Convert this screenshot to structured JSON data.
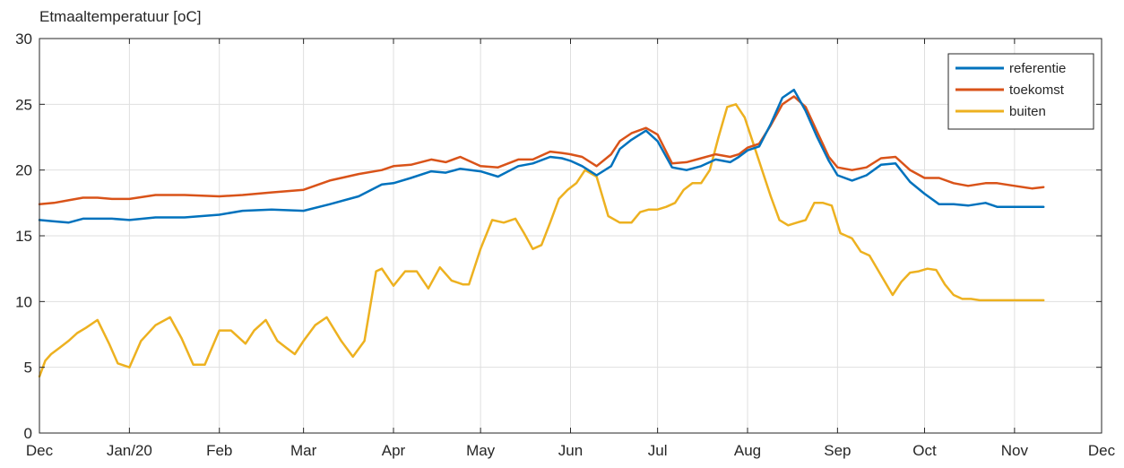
{
  "chart_data": {
    "type": "line",
    "title": "Etmaaltemperatuur [oC]",
    "xlabel": "",
    "ylabel": "",
    "ylim": [
      0,
      30
    ],
    "yticks": [
      0,
      5,
      10,
      15,
      20,
      25,
      30
    ],
    "ytick_labels": [
      "0",
      "5",
      "10",
      "15",
      "20",
      "25",
      "30"
    ],
    "xlim": [
      0,
      366
    ],
    "xticks": [
      0,
      31,
      62,
      91,
      122,
      152,
      183,
      213,
      244,
      275,
      305,
      336,
      366
    ],
    "xtick_labels": [
      "Dec",
      "Jan/20",
      "Feb",
      "Mar",
      "Apr",
      "May",
      "Jun",
      "Jul",
      "Aug",
      "Sep",
      "Oct",
      "Nov",
      "Dec"
    ],
    "grid": true,
    "legend_position": "top-right",
    "colors": {
      "referentie": "#0072bd",
      "toekomst": "#d95319",
      "buiten": "#edb120",
      "grid": "#dfdfdf",
      "axis": "#262626"
    },
    "series": [
      {
        "name": "referentie",
        "x": [
          0,
          5,
          10,
          15,
          20,
          25,
          31,
          40,
          50,
          62,
          70,
          80,
          91,
          100,
          110,
          118,
          122,
          128,
          135,
          140,
          145,
          152,
          158,
          165,
          170,
          176,
          180,
          183,
          187,
          192,
          197,
          200,
          204,
          209,
          213,
          218,
          223,
          228,
          233,
          238,
          241,
          244,
          248,
          252,
          256,
          260,
          264,
          268,
          272,
          275,
          280,
          285,
          290,
          295,
          300,
          305,
          310,
          315,
          320,
          326,
          330,
          336,
          342,
          346
        ],
        "values": [
          16.2,
          16.1,
          16.0,
          16.3,
          16.3,
          16.3,
          16.2,
          16.4,
          16.4,
          16.6,
          16.9,
          17.0,
          16.9,
          17.4,
          18.0,
          18.9,
          19.0,
          19.4,
          19.9,
          19.8,
          20.1,
          19.9,
          19.5,
          20.3,
          20.5,
          21.0,
          20.9,
          20.7,
          20.3,
          19.6,
          20.3,
          21.6,
          22.3,
          23.0,
          22.2,
          20.2,
          20.0,
          20.3,
          20.8,
          20.6,
          21.0,
          21.5,
          21.8,
          23.5,
          25.5,
          26.1,
          24.5,
          22.5,
          20.7,
          19.6,
          19.2,
          19.6,
          20.4,
          20.5,
          19.1,
          18.2,
          17.4,
          17.4,
          17.3,
          17.5,
          17.2,
          17.2,
          17.2,
          17.2
        ]
      },
      {
        "name": "toekomst",
        "x": [
          0,
          5,
          10,
          15,
          20,
          25,
          31,
          40,
          50,
          62,
          70,
          80,
          91,
          100,
          110,
          118,
          122,
          128,
          135,
          140,
          145,
          152,
          158,
          165,
          170,
          176,
          180,
          183,
          187,
          192,
          197,
          200,
          204,
          209,
          213,
          218,
          223,
          228,
          233,
          238,
          241,
          244,
          248,
          252,
          256,
          260,
          264,
          268,
          272,
          275,
          280,
          285,
          290,
          295,
          300,
          305,
          310,
          315,
          320,
          326,
          330,
          336,
          342,
          346
        ],
        "values": [
          17.4,
          17.5,
          17.7,
          17.9,
          17.9,
          17.8,
          17.8,
          18.1,
          18.1,
          18.0,
          18.1,
          18.3,
          18.5,
          19.2,
          19.7,
          20.0,
          20.3,
          20.4,
          20.8,
          20.6,
          21.0,
          20.3,
          20.2,
          20.8,
          20.8,
          21.4,
          21.3,
          21.2,
          21.0,
          20.3,
          21.2,
          22.2,
          22.8,
          23.2,
          22.7,
          20.5,
          20.6,
          20.9,
          21.2,
          21.0,
          21.2,
          21.7,
          22.0,
          23.4,
          25.0,
          25.6,
          24.8,
          22.9,
          21.0,
          20.2,
          20.0,
          20.2,
          20.9,
          21.0,
          20.0,
          19.4,
          19.4,
          19.0,
          18.8,
          19.0,
          19.0,
          18.8,
          18.6,
          18.7
        ]
      },
      {
        "name": "buiten",
        "x": [
          0,
          2,
          4,
          7,
          10,
          13,
          16,
          20,
          24,
          27,
          31,
          35,
          40,
          45,
          49,
          53,
          57,
          62,
          66,
          71,
          74,
          78,
          82,
          85,
          88,
          91,
          95,
          99,
          104,
          108,
          112,
          116,
          118,
          122,
          126,
          130,
          134,
          138,
          142,
          146,
          148,
          152,
          156,
          160,
          164,
          167,
          170,
          173,
          176,
          179,
          182,
          185,
          188,
          192,
          196,
          200,
          204,
          207,
          210,
          213,
          216,
          219,
          222,
          225,
          228,
          231,
          234,
          237,
          240,
          243,
          246,
          249,
          252,
          255,
          258,
          261,
          264,
          267,
          270,
          273,
          276,
          280,
          283,
          286,
          290,
          294,
          297,
          300,
          303,
          306,
          309,
          312,
          315,
          318,
          321,
          324,
          327,
          330,
          333,
          336,
          339,
          342,
          346
        ],
        "values": [
          4.3,
          5.5,
          6.0,
          6.5,
          7.0,
          7.6,
          8.0,
          8.6,
          6.8,
          5.3,
          5.0,
          7.0,
          8.2,
          8.8,
          7.2,
          5.2,
          5.2,
          7.8,
          7.8,
          6.8,
          7.8,
          8.6,
          7.0,
          6.5,
          6.0,
          7.0,
          8.2,
          8.8,
          7.0,
          5.8,
          7.0,
          12.3,
          12.5,
          11.2,
          12.3,
          12.3,
          11.0,
          12.6,
          11.6,
          11.3,
          11.3,
          14.0,
          16.2,
          16.0,
          16.3,
          15.2,
          14.0,
          14.3,
          16.0,
          17.8,
          18.5,
          19.0,
          20.0,
          19.5,
          16.5,
          16.0,
          16.0,
          16.8,
          17.0,
          17.0,
          17.2,
          17.5,
          18.5,
          19.0,
          19.0,
          20.0,
          22.5,
          24.8,
          25.0,
          24.0,
          22.0,
          20.0,
          18.0,
          16.2,
          15.8,
          16.0,
          16.2,
          17.5,
          17.5,
          17.3,
          15.2,
          14.8,
          13.8,
          13.5,
          12.0,
          10.5,
          11.5,
          12.2,
          12.3,
          12.5,
          12.4,
          11.3,
          10.5,
          10.2,
          10.2,
          10.1,
          10.1,
          10.1,
          10.1,
          10.1,
          10.1,
          10.1,
          10.1
        ]
      }
    ]
  }
}
